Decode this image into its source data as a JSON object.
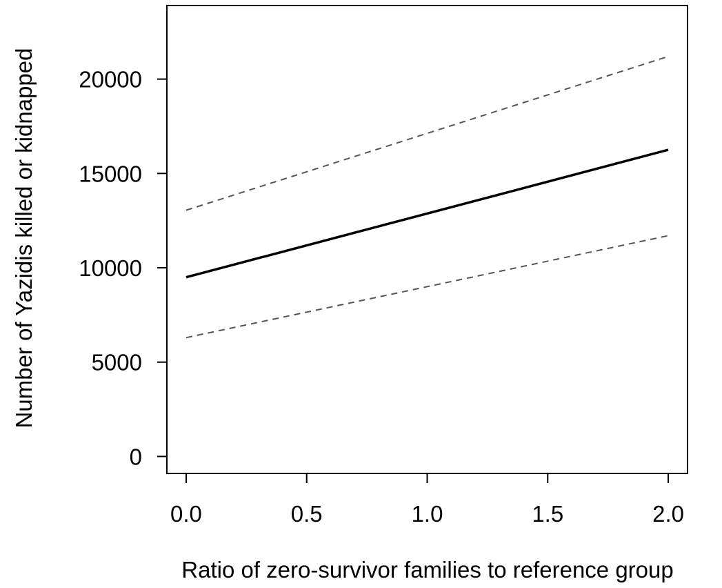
{
  "chart_data": {
    "type": "line",
    "title": "",
    "xlabel": "Ratio of zero-survivor families to reference group",
    "ylabel": "Number of Yazidis killed or kidnapped",
    "xlim": [
      -0.08,
      2.08
    ],
    "ylim": [
      -900,
      23900
    ],
    "x_ticks": [
      0.0,
      0.5,
      1.0,
      1.5,
      2.0
    ],
    "x_tick_labels": [
      "0.0",
      "0.5",
      "1.0",
      "1.5",
      "2.0"
    ],
    "y_ticks": [
      0,
      5000,
      10000,
      15000,
      20000
    ],
    "y_tick_labels": [
      "0",
      "5000",
      "10000",
      "15000",
      "20000"
    ],
    "grid": false,
    "legend": "none",
    "series": [
      {
        "style": "solid",
        "color": "#000000",
        "x": [
          0.0,
          2.0
        ],
        "y": [
          9500,
          16250
        ]
      },
      {
        "style": "dashed",
        "color": "#555555",
        "x": [
          0.0,
          2.0
        ],
        "y": [
          13050,
          21200
        ]
      },
      {
        "style": "dashed",
        "color": "#555555",
        "x": [
          0.0,
          2.0
        ],
        "y": [
          6300,
          11700
        ]
      }
    ]
  }
}
